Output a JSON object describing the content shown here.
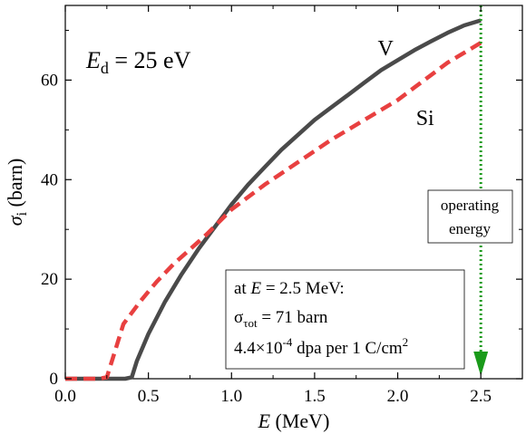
{
  "chart_data": {
    "type": "line",
    "xlabel": {
      "var": "E",
      "unit": " (MeV)"
    },
    "ylabel": {
      "var": "σ",
      "sub": "i",
      "unit": " (barn)"
    },
    "xlim": [
      0.0,
      2.75
    ],
    "ylim": [
      0,
      75
    ],
    "xticks": [
      0.0,
      0.5,
      1.0,
      1.5,
      2.0,
      2.5
    ],
    "xtick_labels": [
      "0.0",
      "0.5",
      "1.0",
      "1.5",
      "2.0",
      "2.5"
    ],
    "yticks": [
      0,
      20,
      40,
      60
    ],
    "ytick_labels": [
      "0",
      "20",
      "40",
      "60"
    ],
    "grid": false,
    "colors": {
      "V": "#4a4a4a",
      "Si": "#e84040",
      "operating": "#1a9a1a"
    },
    "series": [
      {
        "name": "V",
        "style": "solid",
        "x": [
          0.0,
          0.2,
          0.36,
          0.4,
          0.43,
          0.5,
          0.6,
          0.7,
          0.8,
          0.9,
          1.0,
          1.1,
          1.2,
          1.3,
          1.4,
          1.5,
          1.6,
          1.7,
          1.8,
          1.9,
          2.0,
          2.1,
          2.2,
          2.3,
          2.4,
          2.5
        ],
        "y": [
          0,
          0,
          0,
          0.3,
          3.5,
          9,
          15.5,
          21,
          26,
          30.5,
          35,
          39,
          42.5,
          46,
          49,
          52,
          54.5,
          57,
          59.5,
          62,
          64,
          66,
          67.8,
          69.5,
          71,
          72
        ]
      },
      {
        "name": "Si",
        "style": "dashed",
        "x": [
          0.0,
          0.1,
          0.2,
          0.25,
          0.28,
          0.35,
          0.45,
          0.55,
          0.65,
          0.75,
          0.85,
          1.0,
          1.2,
          1.4,
          1.6,
          1.8,
          2.0,
          2.1,
          2.2,
          2.3,
          2.4,
          2.5
        ],
        "y": [
          0,
          0,
          0,
          0.3,
          3.5,
          11,
          15.5,
          19.5,
          23,
          26,
          29,
          34,
          39,
          43.5,
          48,
          52,
          56,
          58.5,
          61,
          63.5,
          65.5,
          67.5
        ]
      }
    ],
    "series_labels": [
      {
        "text": "V",
        "x": 1.88,
        "y": 65
      },
      {
        "text": "Si",
        "x": 2.11,
        "y": 51
      }
    ],
    "annotation": {
      "lhs_var": "E",
      "lhs_sub": "d",
      "rhs": " = 25 eV"
    },
    "operating_marker": {
      "x": 2.5,
      "label_lines": [
        "operating",
        "energy"
      ]
    },
    "info_box": {
      "line1_pre": "at ",
      "line1_var": "E",
      "line1_post": " = 2.5 MeV:",
      "line2_pre": "σ",
      "line2_sub": "τot",
      "line2_post": " = 71 barn",
      "line3_pre": "4.4×10",
      "line3_sup1": "-4",
      "line3_mid": " dpa per 1 C/cm",
      "line3_sup2": "2"
    }
  }
}
